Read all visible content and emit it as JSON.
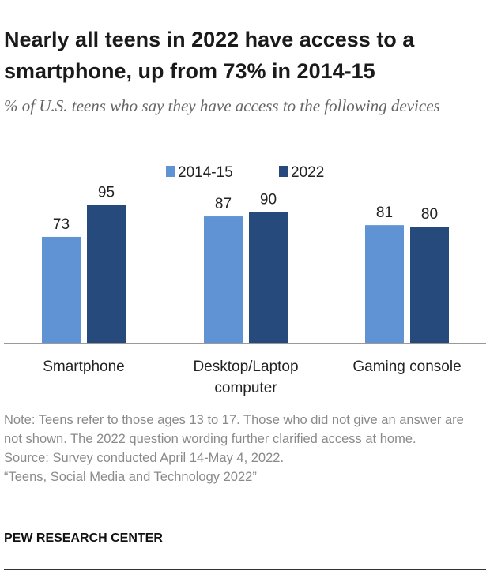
{
  "chart_data": {
    "type": "bar",
    "title": "Nearly all teens in 2022 have access to a smartphone, up from 73% in 2014-15",
    "subtitle": "% of U.S. teens who say they have access to the following devices",
    "categories": [
      "Smartphone",
      "Desktop/Laptop computer",
      "Gaming console"
    ],
    "series": [
      {
        "name": "2014-15",
        "color": "#5f93d4",
        "values": [
          73,
          87,
          81
        ]
      },
      {
        "name": "2022",
        "color": "#274a7c",
        "values": [
          95,
          90,
          80
        ]
      }
    ],
    "note": "Note: Teens refer to those ages 13 to 17. Those who did not give an answer are not shown. The 2022 question wording further clarified access at home.",
    "source": "Source: Survey conducted April 14-May 4, 2022.",
    "report": "“Teens, Social Media and Technology 2022”",
    "credit": "PEW RESEARCH CENTER"
  }
}
